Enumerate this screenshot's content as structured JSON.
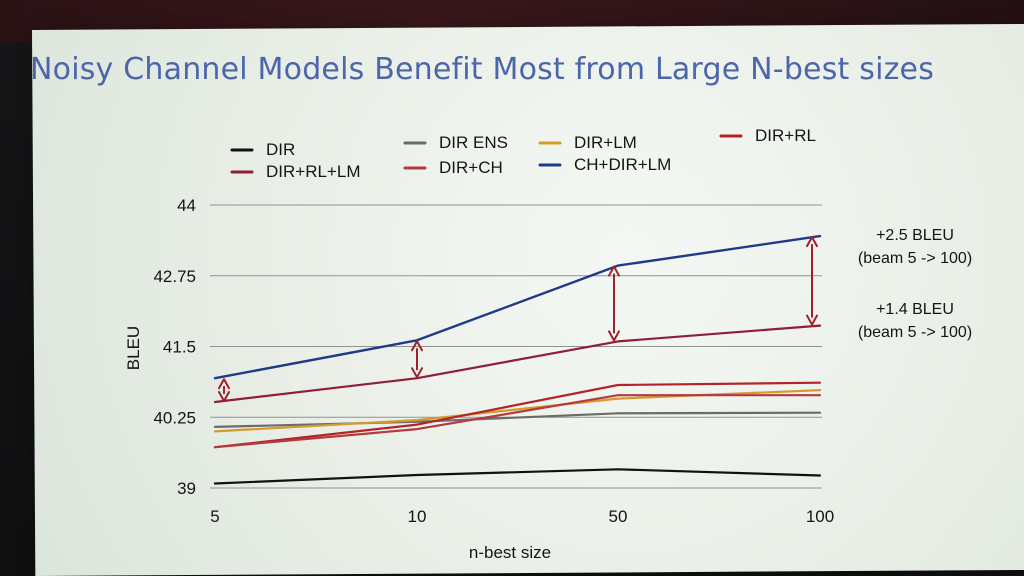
{
  "colors": {
    "dir": "#111111",
    "dir_ens": "#6b6b6b",
    "dir_lm": "#d59a2e",
    "dir_rl": "#b3242a",
    "dir_rl_lm": "#8f1d3d",
    "dir_ch": "#b43a3f",
    "ch_dir_lm": "#203a8a",
    "arrow": "#a11e2b",
    "grid": "#8f948f",
    "title": "#4b66aa"
  },
  "icons": {
    "legend": "line-swatch",
    "annotation": "double-arrow"
  },
  "chart_data": {
    "type": "line",
    "title": "Noisy Channel Models Benefit Most from Large N-best sizes",
    "xlabel": "n-best size",
    "ylabel": "BLEU",
    "categories": [
      "5",
      "10",
      "50",
      "100"
    ],
    "y_ticks": [
      "39",
      "40.25",
      "41.5",
      "42.75",
      "44"
    ],
    "ylim": [
      39,
      44
    ],
    "grid": true,
    "legend_position": "top",
    "series": [
      {
        "key": "dir",
        "name": "DIR",
        "values": [
          39.08,
          39.23,
          39.33,
          39.22
        ]
      },
      {
        "key": "dir_ens",
        "name": "DIR ENS",
        "values": [
          40.08,
          40.17,
          40.32,
          40.33
        ]
      },
      {
        "key": "dir_lm",
        "name": "DIR+LM",
        "values": [
          40.0,
          40.2,
          40.58,
          40.73
        ]
      },
      {
        "key": "dir_rl",
        "name": "DIR+RL",
        "values": [
          39.72,
          40.12,
          40.82,
          40.86
        ]
      },
      {
        "key": "dir_rl_lm",
        "name": "DIR+RL+LM",
        "values": [
          40.52,
          40.94,
          41.59,
          41.87
        ]
      },
      {
        "key": "dir_ch",
        "name": "DIR+CH",
        "values": [
          39.72,
          40.04,
          40.64,
          40.64
        ]
      },
      {
        "key": "ch_dir_lm",
        "name": "CH+DIR+LM",
        "values": [
          40.94,
          41.61,
          42.93,
          43.45
        ]
      }
    ],
    "annotations": [
      {
        "line1": "+2.5 BLEU",
        "line2": "(beam 5 -> 100)"
      },
      {
        "line1": "+1.4 BLEU",
        "line2": "(beam 5 -> 100)"
      }
    ],
    "arrow_markers": [
      {
        "x": "5",
        "low": 40.52,
        "high": 40.94
      },
      {
        "x": "10",
        "low": 40.94,
        "high": 41.61
      },
      {
        "x": "50",
        "low": 41.59,
        "high": 42.93
      },
      {
        "x": "100",
        "low": 41.87,
        "high": 43.45
      }
    ]
  }
}
